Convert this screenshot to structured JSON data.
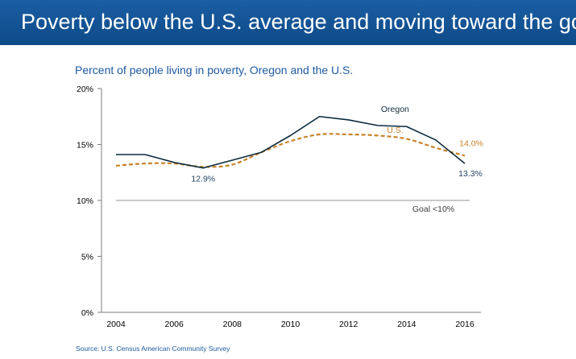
{
  "header": {
    "title": "Poverty below the U.S. average and moving toward the goal"
  },
  "footer": {
    "source": "Source: U.S. Census American Community Survey"
  },
  "colors": {
    "banner": "#124f91",
    "oregon": "#0b2a3c",
    "us": "#c8832a",
    "goal_line": "#a6a6a6",
    "title_text": "#1f5aa0"
  },
  "chart_data": {
    "type": "line",
    "title": "Percent of people living in poverty, Oregon and the U.S.",
    "xlabel": "",
    "ylabel": "",
    "x": [
      2004,
      2005,
      2006,
      2007,
      2008,
      2009,
      2010,
      2011,
      2012,
      2013,
      2014,
      2015,
      2016
    ],
    "xlim": [
      2004,
      2016
    ],
    "ylim": [
      0,
      20
    ],
    "x_ticks": [
      "2004",
      "2006",
      "2008",
      "2010",
      "2012",
      "2014",
      "2016"
    ],
    "y_ticks": [
      "0%",
      "5%",
      "10%",
      "15%",
      "20%"
    ],
    "grid": false,
    "series": [
      {
        "name": "Oregon",
        "style": "solid",
        "color": "#0b2a3c",
        "values": [
          14.1,
          14.1,
          13.4,
          12.9,
          13.6,
          14.3,
          15.8,
          17.5,
          17.2,
          16.7,
          16.6,
          15.4,
          13.3
        ]
      },
      {
        "name": "U.S.",
        "style": "dashed",
        "color": "#c8832a",
        "values": [
          13.1,
          13.3,
          13.3,
          13.0,
          13.2,
          14.3,
          15.3,
          15.9,
          15.9,
          15.8,
          15.5,
          14.7,
          14.0
        ]
      }
    ],
    "goal": {
      "value": 10,
      "label": "Goal <10%"
    },
    "annotations": [
      {
        "text": "12.9%",
        "x": 2007,
        "y": 12.9,
        "series": "Oregon"
      },
      {
        "text": "14.0%",
        "x": 2016,
        "y": 14.0,
        "series": "U.S."
      },
      {
        "text": "13.3%",
        "x": 2016,
        "y": 13.3,
        "series": "Oregon"
      }
    ]
  }
}
